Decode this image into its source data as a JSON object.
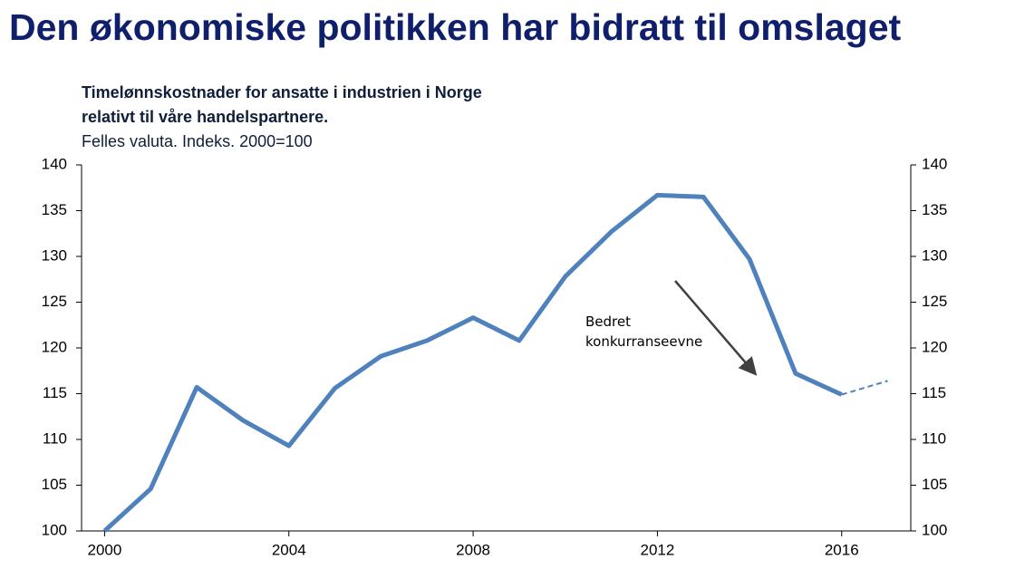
{
  "chart_data": {
    "type": "line",
    "title": "Den økonomiske politikken har bidratt til omslaget",
    "subtitle": [
      "Timelønnskostnader for ansatte i industrien i Norge",
      "relativt til våre handelspartnere."
    ],
    "note": "Felles valuta. Indeks. 2000=100",
    "annotation": "Bedret konkurranseevne",
    "x": [
      2000,
      2001,
      2002,
      2003,
      2004,
      2005,
      2006,
      2007,
      2008,
      2009,
      2010,
      2011,
      2012,
      2013,
      2014,
      2015,
      2016,
      2017
    ],
    "series": [
      {
        "color": "#4f81bd",
        "dashed": false,
        "values": [
          100,
          104.6,
          115.7,
          112.1,
          109.3,
          115.6,
          119.1,
          120.8,
          123.3,
          120.8,
          127.8,
          132.7,
          136.7,
          136.5,
          129.7,
          117.2,
          114.9,
          null
        ]
      },
      {
        "color": "#4f81bd",
        "dashed": true,
        "values": [
          null,
          null,
          null,
          null,
          null,
          null,
          null,
          null,
          null,
          null,
          null,
          null,
          null,
          null,
          null,
          null,
          114.9,
          116.4
        ]
      }
    ],
    "xlim": [
      1999.5,
      2017.5
    ],
    "xticks": [
      2000,
      2004,
      2008,
      2012,
      2016
    ],
    "ylim": [
      100,
      140
    ],
    "yticks": [
      100,
      105,
      110,
      115,
      120,
      125,
      130,
      135,
      140
    ],
    "y2lim": [
      100,
      140
    ],
    "y2ticks": [
      100,
      105,
      110,
      115,
      120,
      125,
      130,
      135,
      140
    ],
    "grid": false
  }
}
